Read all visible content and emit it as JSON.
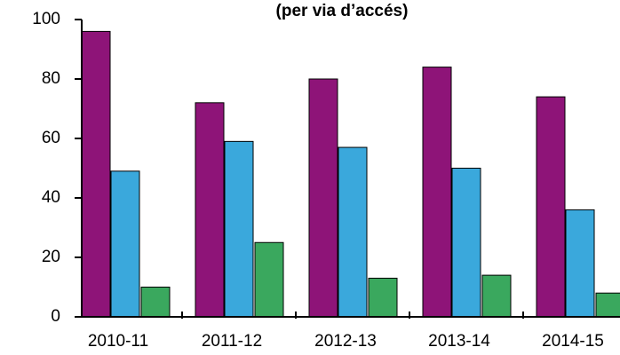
{
  "chart_data": {
    "type": "bar",
    "title": "(per via d’accés)",
    "categories": [
      "2010-11",
      "2011-12",
      "2012-13",
      "2013-14",
      "2014-15"
    ],
    "series": [
      {
        "color": "#8e1478",
        "values": [
          96,
          72,
          80,
          84,
          74
        ]
      },
      {
        "color": "#3aa8dc",
        "values": [
          49,
          59,
          57,
          50,
          36
        ]
      },
      {
        "color": "#3aa85e",
        "values": [
          10,
          25,
          13,
          14,
          8
        ]
      }
    ],
    "ylim": [
      0,
      100
    ],
    "yticks": [
      0,
      20,
      40,
      60,
      80,
      100
    ],
    "grid": false
  }
}
